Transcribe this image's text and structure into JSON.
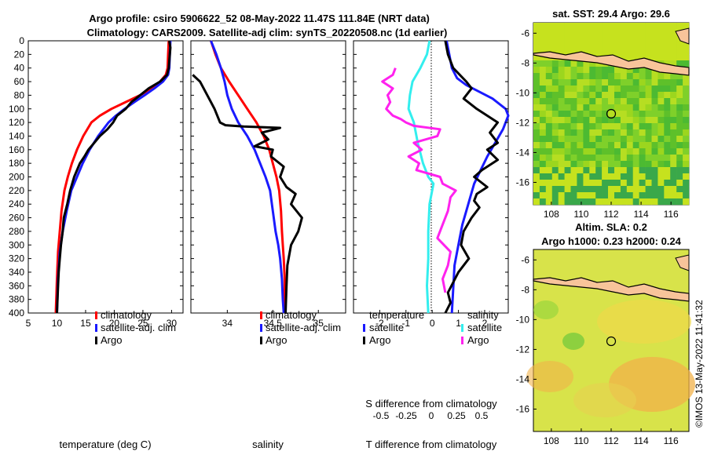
{
  "header": {
    "line1": "Argo profile: csiro 5906622_52 08-May-2022 11.47S 111.84E (NRT data)",
    "line2": "Climatology: CARS2009. Satellite-adj clim: synTS_20220508.nc (1d earlier)"
  },
  "colors": {
    "red": "#ff0000",
    "blue": "#1a1aff",
    "black": "#000000",
    "magenta": "#ff22ee",
    "cyan": "#33eeee",
    "land": "#f8c49a"
  },
  "depth_ticks": [
    "0",
    "20",
    "40",
    "60",
    "80",
    "100",
    "120",
    "140",
    "160",
    "180",
    "200",
    "220",
    "240",
    "260",
    "280",
    "300",
    "320",
    "340",
    "360",
    "380",
    "400"
  ],
  "chart_data": [
    {
      "type": "line",
      "name": "temperature-profile",
      "xlabel": "temperature (deg C)",
      "xlim": [
        5,
        32
      ],
      "ylim": [
        0,
        400
      ],
      "xticks": [
        "5",
        "10",
        "15",
        "20",
        "25",
        "30"
      ],
      "series": [
        {
          "name": "climatology",
          "color": "red",
          "x": [
            29.5,
            29.4,
            29.3,
            29.0,
            28.0,
            26.5,
            24.5,
            22.0,
            19.5,
            17.5,
            16.0,
            14.6,
            13.5,
            12.6,
            11.9,
            11.3,
            10.8,
            10.5,
            10.2,
            10.0,
            9.8
          ],
          "y": [
            0,
            20,
            40,
            50,
            60,
            70,
            80,
            90,
            100,
            110,
            120,
            140,
            160,
            180,
            200,
            220,
            250,
            280,
            310,
            350,
            400
          ]
        },
        {
          "name": "satellite-adj. clim",
          "color": "blue",
          "x": [
            29.8,
            29.7,
            29.6,
            29.4,
            28.5,
            27.0,
            25.3,
            23.5,
            21.8,
            20.3,
            19.0,
            17.2,
            15.7,
            14.5,
            13.5,
            12.5,
            11.7,
            11.0,
            10.5,
            10.2,
            10.0
          ],
          "y": [
            0,
            20,
            40,
            50,
            60,
            70,
            80,
            90,
            100,
            110,
            120,
            140,
            160,
            180,
            200,
            220,
            250,
            280,
            310,
            350,
            400
          ]
        },
        {
          "name": "Argo",
          "color": "black",
          "x": [
            29.6,
            29.8,
            29.7,
            29.5,
            29.2,
            28.0,
            26.0,
            24.5,
            23.0,
            22.0,
            20.5,
            19.8,
            18.8,
            17.5,
            16.5,
            15.5,
            14.8,
            14.0,
            13.0,
            12.3,
            11.8,
            11.2,
            11.0,
            10.7,
            10.5,
            10.3,
            10.2,
            10.1,
            10.0
          ],
          "y": [
            0,
            10,
            20,
            40,
            50,
            60,
            70,
            80,
            90,
            100,
            110,
            120,
            130,
            140,
            150,
            160,
            170,
            180,
            200,
            220,
            240,
            260,
            280,
            300,
            320,
            340,
            360,
            380,
            400
          ]
        }
      ],
      "legend": [
        "climatology",
        "satellite-adj. clim",
        "Argo"
      ]
    },
    {
      "type": "line",
      "name": "salinity-profile",
      "xlabel": "salinity",
      "xlim": [
        33.6,
        35.3
      ],
      "ylim": [
        0,
        400
      ],
      "xticks": [
        "34",
        "34.5",
        "35"
      ],
      "series": [
        {
          "name": "climatology",
          "color": "red",
          "x": [
            33.82,
            33.87,
            33.93,
            34.02,
            34.12,
            34.22,
            34.32,
            34.4,
            34.46,
            34.5,
            34.54,
            34.57,
            34.59,
            34.6,
            34.61,
            34.62,
            34.63,
            34.63,
            34.64
          ],
          "y": [
            0,
            20,
            40,
            60,
            80,
            100,
            120,
            140,
            160,
            180,
            200,
            220,
            250,
            280,
            300,
            320,
            350,
            380,
            400
          ]
        },
        {
          "name": "satellite-adj. clim",
          "color": "blue",
          "x": [
            33.82,
            33.88,
            33.93,
            33.97,
            34.0,
            34.05,
            34.12,
            34.22,
            34.3,
            34.36,
            34.42,
            34.47,
            34.5,
            34.53,
            34.56,
            34.58,
            34.6,
            34.61,
            34.62
          ],
          "y": [
            0,
            20,
            40,
            60,
            80,
            100,
            120,
            140,
            160,
            180,
            200,
            220,
            250,
            280,
            300,
            320,
            350,
            380,
            400
          ]
        },
        {
          "name": "Argo",
          "color": "black",
          "x": [
            33.62,
            33.7,
            33.78,
            33.86,
            33.89,
            33.92,
            33.98,
            34.18,
            34.58,
            34.38,
            34.45,
            34.3,
            34.5,
            34.48,
            34.62,
            34.58,
            34.65,
            34.75,
            34.7,
            34.82,
            34.78,
            34.7,
            34.66,
            34.65,
            34.64
          ],
          "y": [
            50,
            60,
            80,
            100,
            110,
            120,
            124,
            126,
            128,
            135,
            145,
            155,
            160,
            170,
            185,
            200,
            215,
            225,
            240,
            260,
            280,
            300,
            330,
            360,
            400
          ]
        }
      ],
      "legend": [
        "climatology",
        "satellite-adj. clim",
        "Argo"
      ]
    },
    {
      "type": "line",
      "name": "difference-profile",
      "xlabel": "T difference from climatology",
      "xlabel_top": "S difference from climatology",
      "xlim": [
        -3.0,
        2.9
      ],
      "ylim": [
        0,
        400
      ],
      "xticks": [
        "-2",
        "-1",
        "0",
        "1",
        "2"
      ],
      "xticks_top": [
        "-0.5",
        "-0.25",
        "0",
        "0.25",
        "0.5"
      ],
      "series": [
        {
          "name": "temperature satellite",
          "color": "blue",
          "x": [
            0.55,
            0.65,
            0.75,
            0.95,
            1.3,
            1.8,
            2.3,
            2.8,
            2.9,
            2.7,
            2.4,
            2.1,
            1.85,
            1.6,
            1.45,
            1.3,
            1.15,
            1.05,
            0.95,
            0.85,
            0.75
          ],
          "y": [
            0,
            20,
            40,
            55,
            65,
            75,
            85,
            100,
            110,
            130,
            150,
            170,
            190,
            210,
            230,
            250,
            270,
            290,
            310,
            330,
            400
          ]
        },
        {
          "name": "temperature Argo",
          "color": "black",
          "x": [
            0.5,
            0.6,
            0.8,
            1.3,
            1.5,
            1.2,
            1.7,
            2.5,
            2.2,
            2.5,
            2.1,
            2.5,
            1.9,
            1.6,
            2.1,
            1.7,
            1.6,
            1.8,
            1.5,
            1.2,
            1.1,
            1.4,
            1.0,
            0.8,
            0.6,
            0.7,
            0.5
          ],
          "y": [
            0,
            20,
            40,
            60,
            70,
            85,
            100,
            120,
            135,
            150,
            160,
            175,
            190,
            200,
            215,
            225,
            235,
            245,
            260,
            280,
            300,
            320,
            340,
            355,
            370,
            385,
            400
          ]
        },
        {
          "name": "salinity satellite",
          "color": "cyan",
          "x": [
            -0.1,
            -0.2,
            -0.45,
            -0.75,
            -0.85,
            -0.9,
            -0.7,
            -0.55,
            -0.35,
            -0.15,
            0.05,
            -0.1,
            -0.15,
            -0.15,
            -0.2,
            -0.15
          ],
          "y": [
            0,
            20,
            40,
            60,
            80,
            100,
            120,
            150,
            180,
            200,
            210,
            240,
            280,
            320,
            360,
            400
          ]
        },
        {
          "name": "salinity Argo",
          "color": "magenta",
          "x": [
            -1.4,
            -1.5,
            -1.9,
            -1.5,
            -1.7,
            -1.6,
            -1.75,
            -1.5,
            -1.2,
            -1.0,
            -0.7,
            0.3,
            0.2,
            -0.7,
            -0.4,
            -0.9,
            -0.5,
            -0.6,
            0.3,
            0.4,
            0.9,
            0.7,
            0.6,
            0.4,
            0.2,
            0.7,
            0.6,
            0.4,
            0.5
          ],
          "y": [
            40,
            50,
            60,
            70,
            80,
            90,
            100,
            110,
            115,
            120,
            125,
            130,
            140,
            150,
            160,
            170,
            180,
            190,
            200,
            210,
            220,
            230,
            250,
            270,
            290,
            310,
            330,
            350,
            370
          ]
        }
      ],
      "legend_temperature": {
        "title": "temperature",
        "items": [
          "satellite",
          "Argo"
        ]
      },
      "legend_salinity": {
        "title": "salinity",
        "items": [
          "satellite",
          "Argo"
        ]
      }
    }
  ],
  "maps": {
    "sst": {
      "title": "sat. SST: 29.4 Argo: 29.6",
      "yticks": [
        "-6",
        "-8",
        "-10",
        "-12",
        "-14",
        "-16"
      ],
      "xticks": [
        "108",
        "110",
        "112",
        "114",
        "116"
      ]
    },
    "sla": {
      "title1": "Altim. SLA: 0.2",
      "title2": "Argo h1000: 0.23 h2000: 0.24",
      "yticks": [
        "-6",
        "-8",
        "-10",
        "-12",
        "-14",
        "-16"
      ],
      "xticks": [
        "108",
        "110",
        "112",
        "114",
        "116"
      ]
    }
  },
  "footer": {
    "copyright": "©IMOS 13-May-2022 11:41:32"
  }
}
